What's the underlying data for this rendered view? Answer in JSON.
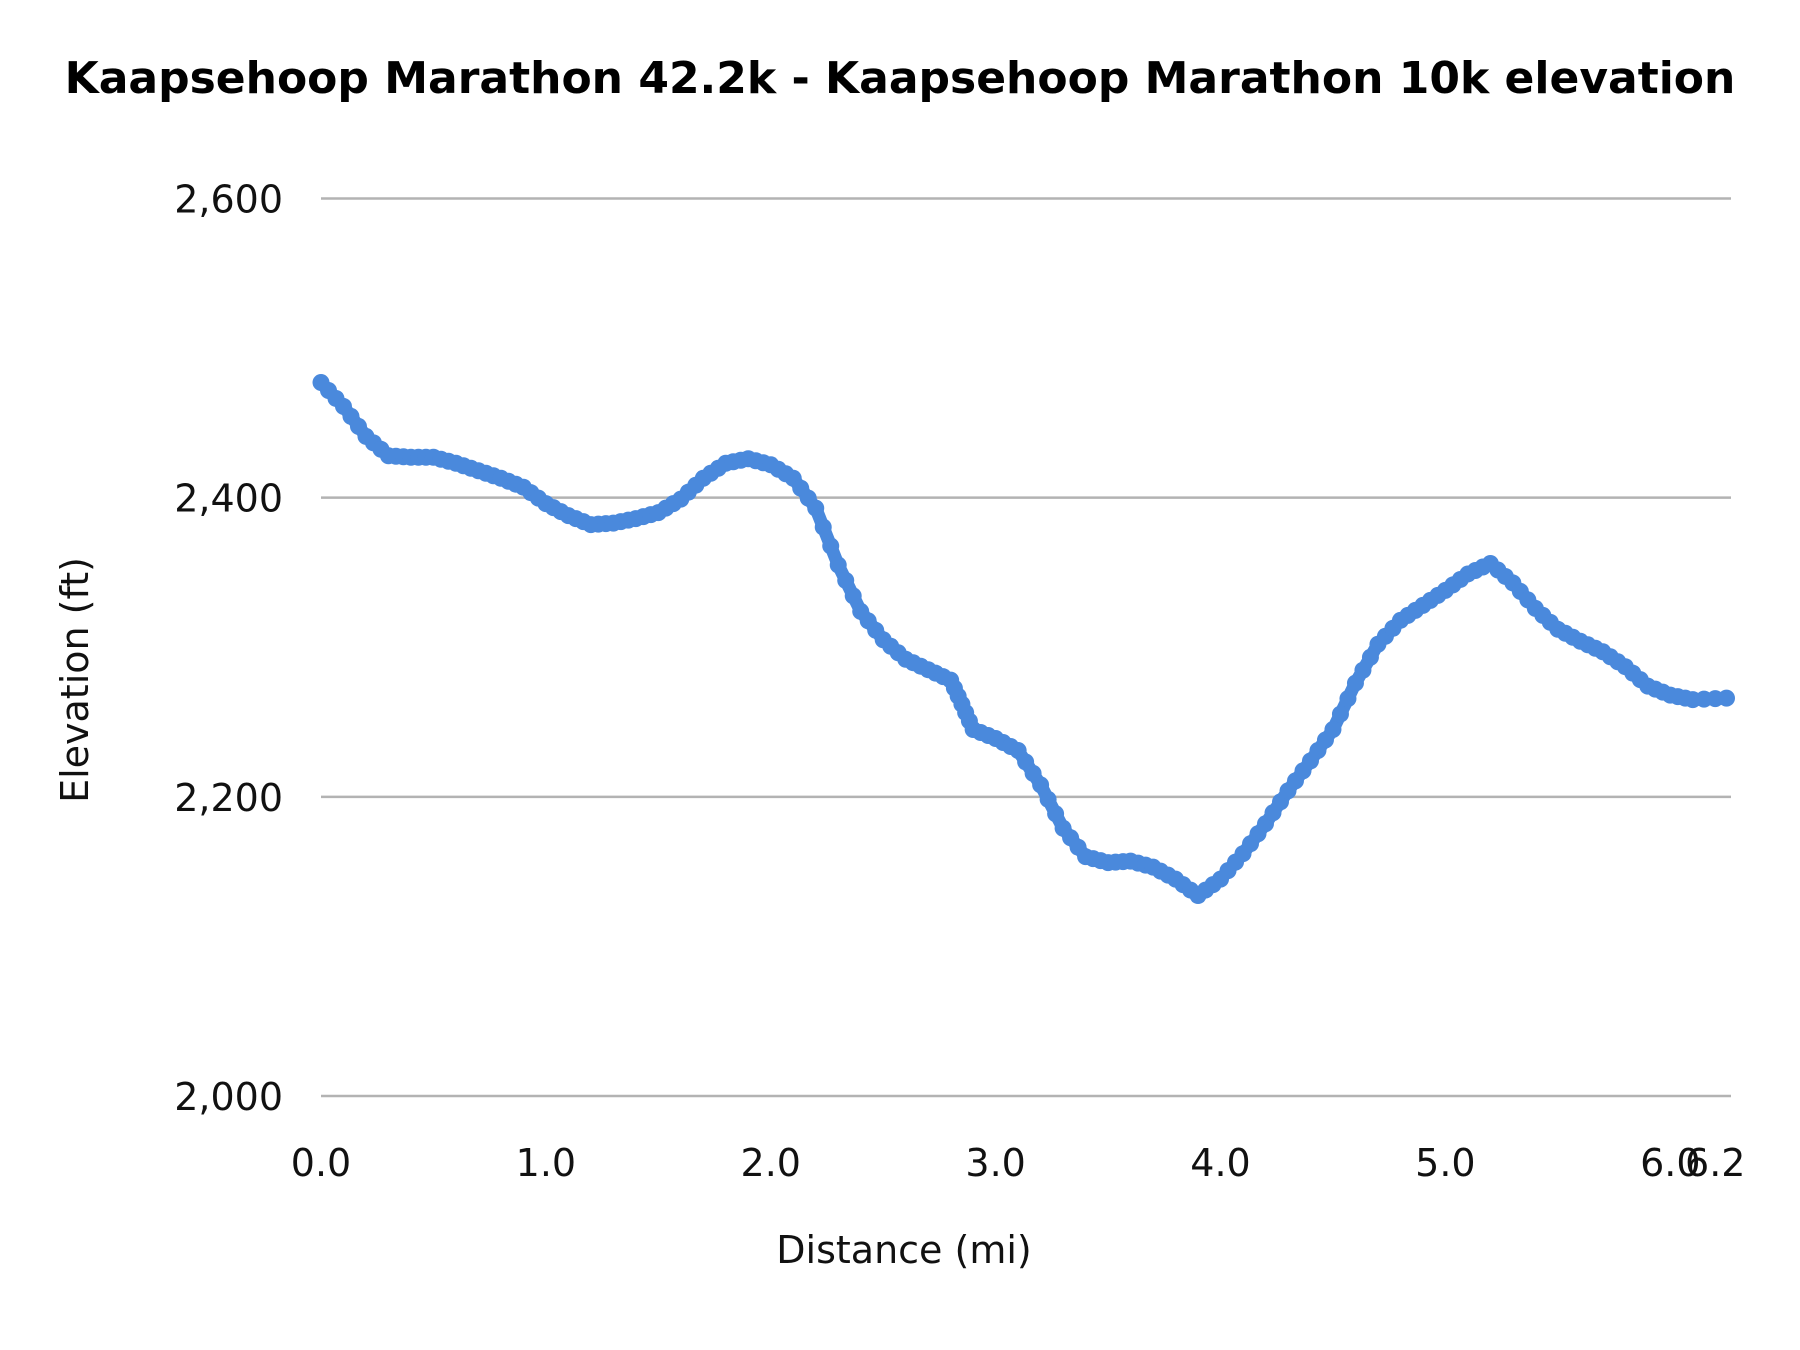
{
  "chart_data": {
    "type": "line",
    "title": "Kaapsehoop Marathon 42.2k - Kaapsehoop Marathon 10k elevation",
    "xlabel": "Distance (mi)",
    "ylabel": "Elevation (ft)",
    "xlim": [
      0,
      6.27
    ],
    "ylim": [
      2000,
      2600
    ],
    "x_ticks": [
      "0.0",
      "1.0",
      "2.0",
      "3.0",
      "4.0",
      "5.0",
      "6.0",
      "6.2"
    ],
    "x_tick_values": [
      0,
      1,
      2,
      3,
      4,
      5,
      6,
      6.2
    ],
    "y_ticks": [
      "2,000",
      "2,200",
      "2,400",
      "2,600"
    ],
    "y_tick_values": [
      2000,
      2200,
      2400,
      2600
    ],
    "grid": true,
    "legend": "none",
    "series": [
      {
        "name": "Elevation",
        "color": "#4a89dc",
        "x": [
          0,
          0.1,
          0.2,
          0.3,
          0.4,
          0.5,
          0.6,
          0.7,
          0.8,
          0.9,
          1.0,
          1.1,
          1.2,
          1.3,
          1.4,
          1.5,
          1.6,
          1.7,
          1.8,
          1.9,
          2.0,
          2.1,
          2.2,
          2.3,
          2.4,
          2.5,
          2.6,
          2.7,
          2.8,
          2.85,
          2.9,
          3.0,
          3.1,
          3.2,
          3.3,
          3.4,
          3.5,
          3.6,
          3.7,
          3.8,
          3.9,
          4.0,
          4.1,
          4.2,
          4.3,
          4.4,
          4.5,
          4.6,
          4.7,
          4.8,
          4.9,
          5.0,
          5.1,
          5.2,
          5.3,
          5.4,
          5.5,
          5.6,
          5.7,
          5.8,
          5.9,
          6.0,
          6.1,
          6.25
        ],
        "y": [
          2477,
          2461,
          2441,
          2428,
          2427,
          2427,
          2423,
          2418,
          2413,
          2407,
          2396,
          2388,
          2382,
          2383,
          2386,
          2390,
          2399,
          2413,
          2423,
          2426,
          2422,
          2413,
          2393,
          2355,
          2324,
          2305,
          2292,
          2285,
          2278,
          2262,
          2245,
          2239,
          2231,
          2208,
          2179,
          2160,
          2156,
          2157,
          2153,
          2145,
          2134,
          2145,
          2162,
          2182,
          2204,
          2224,
          2245,
          2276,
          2302,
          2318,
          2328,
          2338,
          2349,
          2356,
          2343,
          2326,
          2312,
          2304,
          2297,
          2287,
          2274,
          2268,
          2265,
          2266
        ]
      }
    ]
  }
}
